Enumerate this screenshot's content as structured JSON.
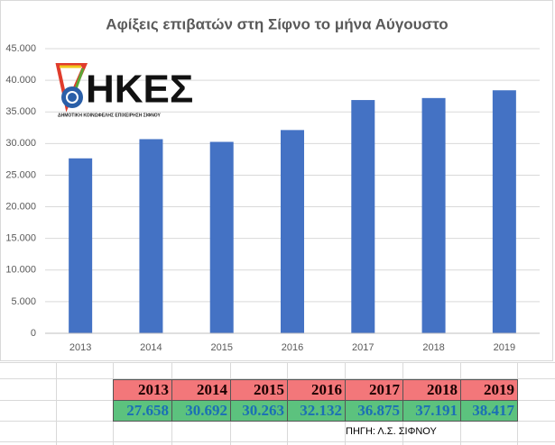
{
  "chart_data": {
    "type": "bar",
    "title": "Αφίξεις επιβατών στη Σίφνο το μήνα Αύγουστο",
    "categories": [
      "2013",
      "2014",
      "2015",
      "2016",
      "2017",
      "2018",
      "2019"
    ],
    "values": [
      27658,
      30692,
      30263,
      32132,
      36875,
      37191,
      38417
    ],
    "color": "#4472c4",
    "ylim": [
      0,
      45000
    ],
    "yticks": [
      0,
      {
        "value": 5000,
        "label": "5.000"
      },
      {
        "value": 10000,
        "label": "10.000"
      },
      {
        "value": 15000,
        "label": "15.000"
      },
      {
        "value": 20000,
        "label": "20.000"
      },
      {
        "value": 25000,
        "label": "25.000"
      },
      {
        "value": 30000,
        "label": "30.000"
      },
      {
        "value": 35000,
        "label": "35.000"
      },
      {
        "value": 40000,
        "label": "40.000"
      },
      {
        "value": 45000,
        "label": "45.000"
      }
    ],
    "grid": true
  },
  "logo": {
    "text": "ΗΚΕΣ",
    "subtitle": "ΔΗΜΟΤΙΚΗ ΚΟΙΝΩΦΕΛΗΣ ΕΠΙΧΕΙΡΗΣΗ ΣΙΦΝΟΥ"
  },
  "table": {
    "header": [
      "2013",
      "2014",
      "2015",
      "2016",
      "2017",
      "2018",
      "2019"
    ],
    "values": [
      "27.658",
      "30.692",
      "30.263",
      "32.132",
      "36.875",
      "37.191",
      "38.417"
    ]
  },
  "source": "ΠΗΓΗ: Λ.Σ. ΣΙΦΝΟΥ"
}
